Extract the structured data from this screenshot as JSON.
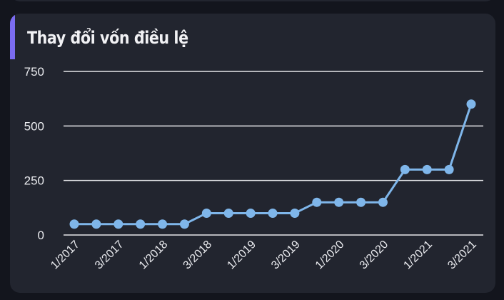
{
  "card": {
    "title": "Thay đổi vốn điều lệ"
  },
  "colors": {
    "background": "#13151d",
    "card": "#22252f",
    "accent": "#7b6cf0",
    "line": "#7fb6ea",
    "grid": "#e6e6ea",
    "text": "#e9eaee"
  },
  "chart_data": {
    "type": "line",
    "title": "Thay đổi vốn điều lệ",
    "xlabel": "",
    "ylabel": "",
    "ylim": [
      0,
      750
    ],
    "yticks": [
      0,
      250,
      500,
      750
    ],
    "grid": true,
    "x": [
      "1/2017",
      "2/2017",
      "3/2017",
      "4/2017",
      "1/2018",
      "2/2018",
      "3/2018",
      "4/2018",
      "1/2019",
      "2/2019",
      "3/2019",
      "4/2019",
      "1/2020",
      "2/2020",
      "3/2020",
      "4/2020",
      "1/2021",
      "2/2021",
      "3/2021"
    ],
    "xtick_labels": [
      "1/2017",
      "3/2017",
      "1/2018",
      "3/2018",
      "1/2019",
      "3/2019",
      "1/2020",
      "3/2020",
      "1/2021",
      "3/2021"
    ],
    "series": [
      {
        "values": [
          50,
          50,
          50,
          50,
          50,
          50,
          100,
          100,
          100,
          100,
          100,
          150,
          150,
          150,
          150,
          300,
          300,
          300,
          600
        ]
      }
    ]
  }
}
